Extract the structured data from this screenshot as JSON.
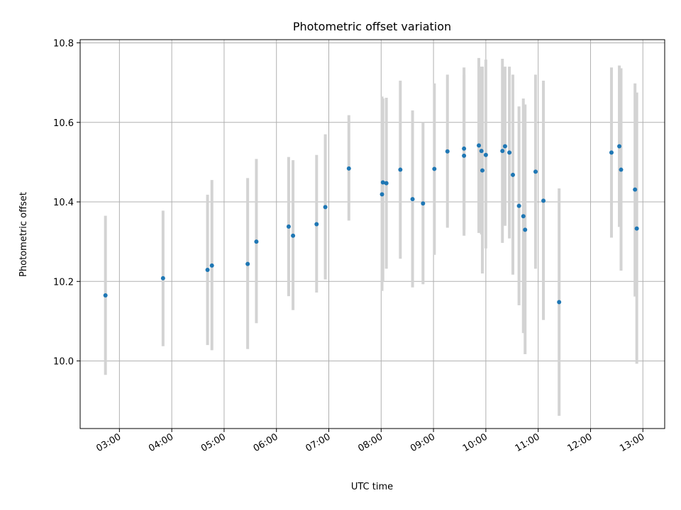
{
  "chart_data": {
    "type": "scatter",
    "title": "Photometric offset variation",
    "xlabel": "UTC time",
    "ylabel": "Photometric offset",
    "xlim": [
      "02:15",
      "13:25"
    ],
    "ylim": [
      9.83,
      10.808
    ],
    "x_ticks": [
      "03:00",
      "04:00",
      "05:00",
      "06:00",
      "07:00",
      "08:00",
      "09:00",
      "10:00",
      "11:00",
      "12:00",
      "13:00"
    ],
    "y_ticks": [
      10.0,
      10.2,
      10.4,
      10.6,
      10.8
    ],
    "y_tick_labels": [
      "10.0",
      "10.2",
      "10.4",
      "10.6",
      "10.8"
    ],
    "grid": true,
    "marker_color": "#1f77b4",
    "errorbar_color": "#d3d3d3",
    "series": [
      {
        "points": [
          {
            "x": "02:44",
            "y": 10.165,
            "low": 9.965,
            "high": 10.365
          },
          {
            "x": "03:50",
            "y": 10.208,
            "low": 10.037,
            "high": 10.378
          },
          {
            "x": "04:41",
            "y": 10.229,
            "low": 10.04,
            "high": 10.418
          },
          {
            "x": "04:46",
            "y": 10.24,
            "low": 10.027,
            "high": 10.455
          },
          {
            "x": "05:27",
            "y": 10.244,
            "low": 10.03,
            "high": 10.46
          },
          {
            "x": "05:37",
            "y": 10.3,
            "low": 10.095,
            "high": 10.508
          },
          {
            "x": "06:14",
            "y": 10.338,
            "low": 10.163,
            "high": 10.513
          },
          {
            "x": "06:19",
            "y": 10.315,
            "low": 10.128,
            "high": 10.505
          },
          {
            "x": "06:46",
            "y": 10.344,
            "low": 10.172,
            "high": 10.518
          },
          {
            "x": "06:56",
            "y": 10.387,
            "low": 10.205,
            "high": 10.57
          },
          {
            "x": "07:23",
            "y": 10.484,
            "low": 10.353,
            "high": 10.618
          },
          {
            "x": "08:01",
            "y": 10.419,
            "low": 10.176,
            "high": 10.665
          },
          {
            "x": "08:02",
            "y": 10.449,
            "low": 10.2,
            "high": 10.66
          },
          {
            "x": "08:06",
            "y": 10.447,
            "low": 10.232,
            "high": 10.662
          },
          {
            "x": "08:22",
            "y": 10.481,
            "low": 10.257,
            "high": 10.705
          },
          {
            "x": "08:36",
            "y": 10.407,
            "low": 10.185,
            "high": 10.63
          },
          {
            "x": "08:48",
            "y": 10.396,
            "low": 10.193,
            "high": 10.6
          },
          {
            "x": "09:01",
            "y": 10.483,
            "low": 10.267,
            "high": 10.698
          },
          {
            "x": "09:16",
            "y": 10.527,
            "low": 10.335,
            "high": 10.72
          },
          {
            "x": "09:35",
            "y": 10.534,
            "low": 10.33,
            "high": 10.738
          },
          {
            "x": "09:35",
            "y": 10.516,
            "low": 10.315,
            "high": 10.72
          },
          {
            "x": "09:52",
            "y": 10.542,
            "low": 10.322,
            "high": 10.762
          },
          {
            "x": "09:55",
            "y": 10.528,
            "low": 10.318,
            "high": 10.74
          },
          {
            "x": "09:56",
            "y": 10.479,
            "low": 10.22,
            "high": 10.74
          },
          {
            "x": "10:00",
            "y": 10.518,
            "low": 10.283,
            "high": 10.758
          },
          {
            "x": "10:19",
            "y": 10.528,
            "low": 10.297,
            "high": 10.76
          },
          {
            "x": "10:22",
            "y": 10.54,
            "low": 10.34,
            "high": 10.74
          },
          {
            "x": "10:27",
            "y": 10.524,
            "low": 10.308,
            "high": 10.74
          },
          {
            "x": "10:31",
            "y": 10.468,
            "low": 10.217,
            "high": 10.72
          },
          {
            "x": "10:38",
            "y": 10.39,
            "low": 10.14,
            "high": 10.64
          },
          {
            "x": "10:43",
            "y": 10.364,
            "low": 10.07,
            "high": 10.66
          },
          {
            "x": "10:45",
            "y": 10.33,
            "low": 10.017,
            "high": 10.645
          },
          {
            "x": "10:57",
            "y": 10.476,
            "low": 10.232,
            "high": 10.72
          },
          {
            "x": "11:06",
            "y": 10.403,
            "low": 10.103,
            "high": 10.705
          },
          {
            "x": "11:24",
            "y": 10.148,
            "low": 9.862,
            "high": 10.434
          },
          {
            "x": "12:24",
            "y": 10.524,
            "low": 10.31,
            "high": 10.738
          },
          {
            "x": "12:33",
            "y": 10.54,
            "low": 10.337,
            "high": 10.743
          },
          {
            "x": "12:35",
            "y": 10.481,
            "low": 10.227,
            "high": 10.736
          },
          {
            "x": "12:51",
            "y": 10.431,
            "low": 10.162,
            "high": 10.698
          },
          {
            "x": "12:53",
            "y": 10.333,
            "low": 9.993,
            "high": 10.675
          }
        ]
      }
    ]
  }
}
